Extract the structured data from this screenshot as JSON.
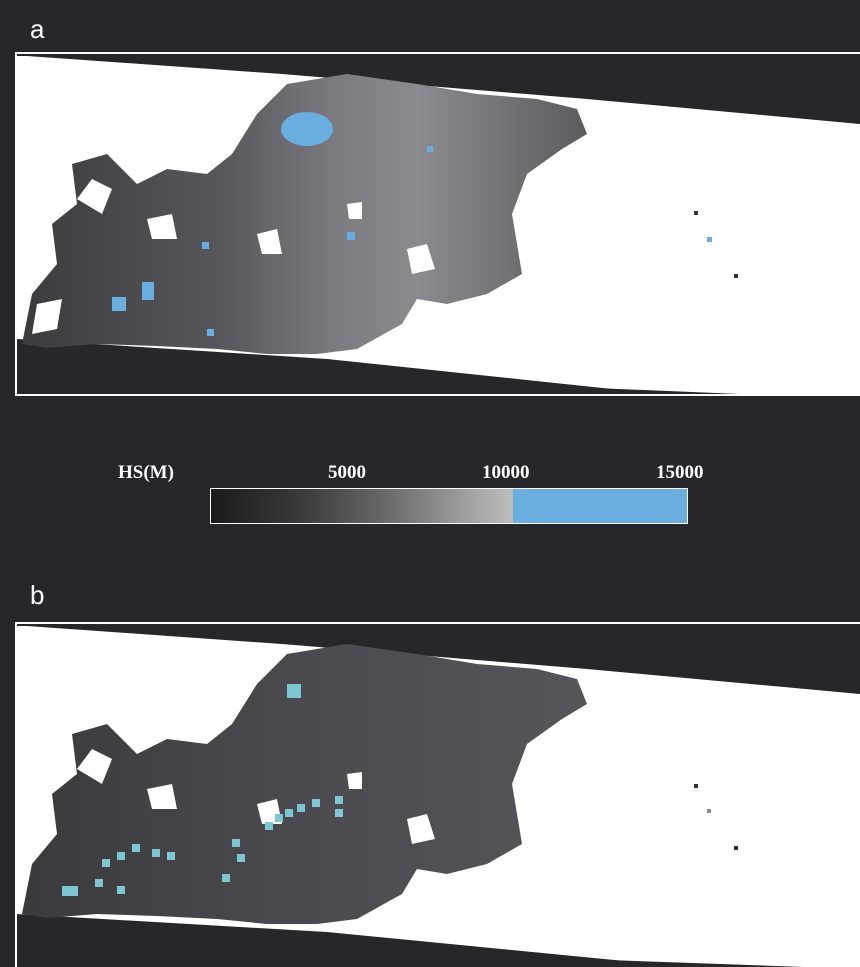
{
  "panels": [
    {
      "label": "a"
    },
    {
      "label": "b"
    }
  ],
  "legend": {
    "title": "HS(M)",
    "ticks": [
      "5000",
      "10000",
      "15000"
    ]
  },
  "colors": {
    "background": "#26262b",
    "no_data": "#ffffff",
    "high_value": "#6aaee0",
    "panel_b_marker": "#7ec6d2"
  }
}
